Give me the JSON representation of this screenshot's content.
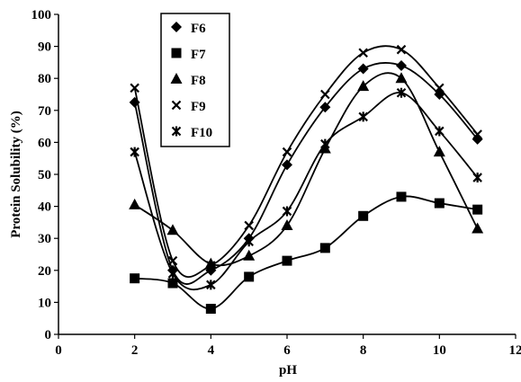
{
  "chart_data": {
    "type": "line",
    "xlabel": "pH",
    "ylabel": "Protein Solubility (%)",
    "xlim": [
      0,
      12
    ],
    "ylim": [
      0,
      100
    ],
    "x_ticks": [
      "0",
      "2",
      "4",
      "6",
      "8",
      "10",
      "12"
    ],
    "y_ticks": [
      "0",
      "10",
      "20",
      "30",
      "40",
      "50",
      "60",
      "70",
      "80",
      "90",
      "100"
    ],
    "grid": false,
    "legend_position": "top-left (inside plot)",
    "x": [
      2,
      3,
      4,
      5,
      6,
      7,
      8,
      9,
      10,
      11
    ],
    "series": [
      {
        "name": "F6",
        "marker": "diamond",
        "values": [
          72.5,
          20,
          20,
          30,
          53,
          71,
          83,
          84,
          75,
          61
        ]
      },
      {
        "name": "F7",
        "marker": "square",
        "values": [
          17.5,
          16,
          8,
          18,
          23,
          27,
          37,
          43,
          41,
          39
        ]
      },
      {
        "name": "F8",
        "marker": "triangle",
        "values": [
          40.5,
          32.5,
          22,
          24.5,
          34,
          58,
          77.5,
          80,
          57,
          33
        ]
      },
      {
        "name": "F9",
        "marker": "cross",
        "values": [
          77,
          23,
          21.5,
          34,
          57,
          75,
          88,
          89,
          77,
          62.5
        ]
      },
      {
        "name": "F10",
        "marker": "asterisk",
        "values": [
          57,
          19,
          15.5,
          29,
          38.5,
          59.5,
          68,
          75.5,
          63.5,
          49
        ]
      }
    ]
  }
}
